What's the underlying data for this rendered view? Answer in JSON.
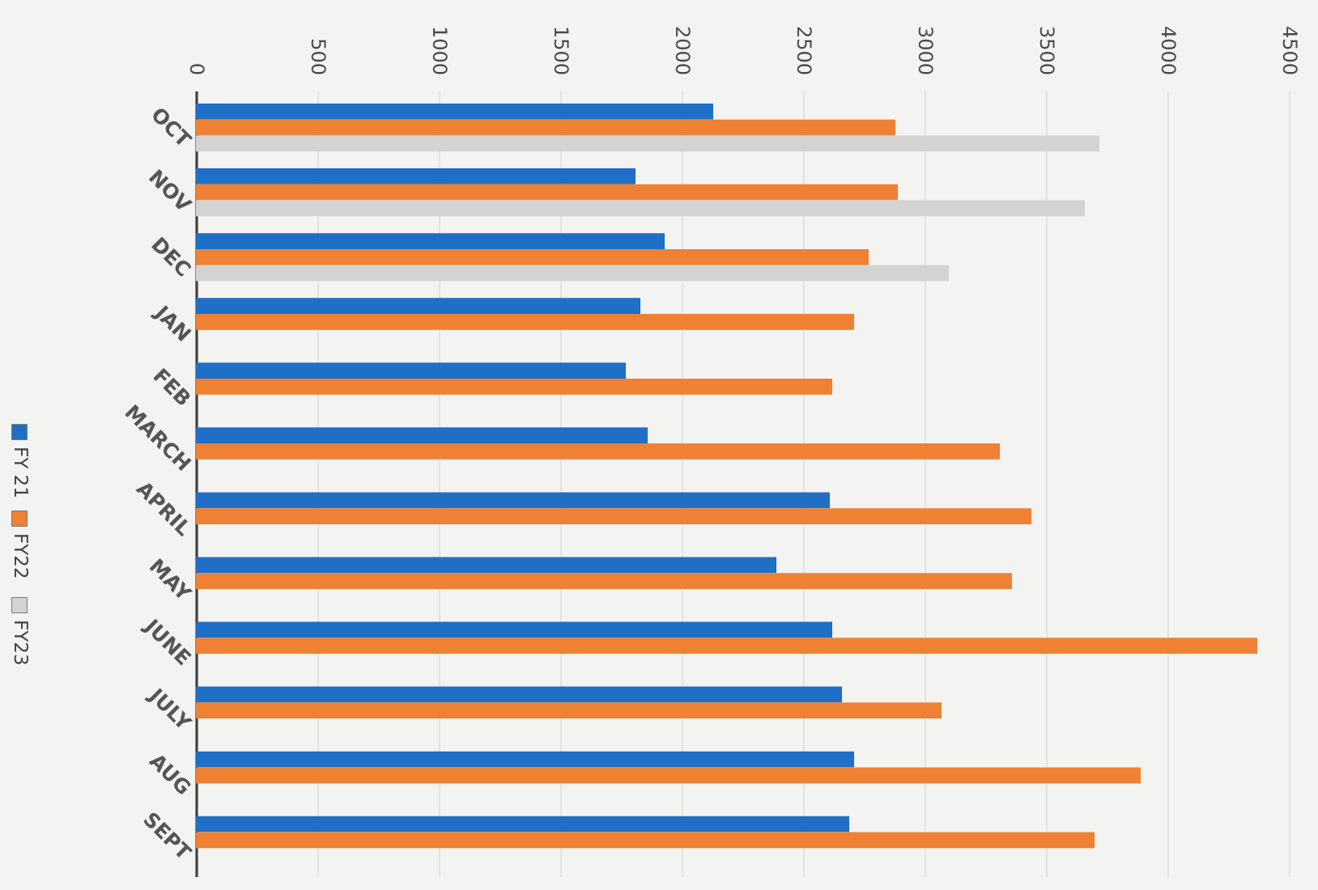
{
  "chart_data": {
    "type": "bar",
    "orientation": "horizontal",
    "categories": [
      "OCT",
      "NOV",
      "DEC",
      "JAN",
      "FEB",
      "MARCH",
      "APRIL",
      "MAY",
      "JUNE",
      "JULY",
      "AUG",
      "SEPT"
    ],
    "series": [
      {
        "name": "FY 21",
        "color": "#1f6fc6",
        "values": [
          2130,
          1810,
          1930,
          1830,
          1770,
          1860,
          2610,
          2390,
          2620,
          2660,
          2710,
          2690
        ]
      },
      {
        "name": "FY22",
        "color": "#ee8134",
        "values": [
          2880,
          2890,
          2770,
          2710,
          2620,
          3310,
          3440,
          3360,
          4370,
          3070,
          3890,
          3700
        ]
      },
      {
        "name": "FY23",
        "color": "#d3d3d1",
        "values": [
          3720,
          3660,
          3100,
          null,
          null,
          null,
          null,
          null,
          null,
          null,
          null,
          null
        ]
      }
    ],
    "xlim": [
      0,
      4500
    ],
    "xticks": [
      0,
      500,
      1000,
      1500,
      2000,
      2500,
      3000,
      3500,
      4000,
      4500
    ],
    "grid": "x",
    "legend": "left"
  }
}
